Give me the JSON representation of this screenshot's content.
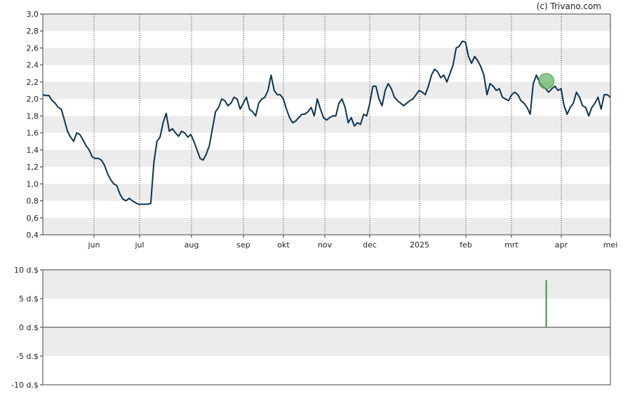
{
  "copyright": "(c) Trivano.com",
  "chart_data": [
    {
      "type": "line",
      "ylim": [
        0.4,
        3.0
      ],
      "yticks": [
        "0,4",
        "0,6",
        "0,8",
        "1,0",
        "1,2",
        "1,4",
        "1,6",
        "1,8",
        "2,0",
        "2,2",
        "2,4",
        "2,6",
        "2,8",
        "3,0"
      ],
      "xticks": [
        "jun",
        "jul",
        "aug",
        "sep",
        "okt",
        "nov",
        "dec",
        "2025",
        "feb",
        "mrt",
        "apr",
        "mei"
      ],
      "grid": true,
      "line_color": "#0d3350",
      "marker": {
        "x": 0.887,
        "y": 2.21,
        "color": "#6ab56a"
      },
      "series": [
        {
          "values": [
            2.05,
            2.04,
            2.04,
            1.98,
            1.95,
            1.9,
            1.88,
            1.75,
            1.62,
            1.55,
            1.5,
            1.6,
            1.58,
            1.52,
            1.45,
            1.4,
            1.32,
            1.3,
            1.3,
            1.28,
            1.22,
            1.12,
            1.05,
            1.0,
            0.98,
            0.88,
            0.82,
            0.8,
            0.83,
            0.8,
            0.78,
            0.76,
            0.76,
            0.76,
            0.76,
            0.77,
            1.25,
            1.5,
            1.55,
            1.72,
            1.83,
            1.62,
            1.65,
            1.6,
            1.56,
            1.62,
            1.6,
            1.55,
            1.58,
            1.5,
            1.4,
            1.3,
            1.28,
            1.35,
            1.45,
            1.65,
            1.85,
            1.9,
            2.0,
            1.98,
            1.92,
            1.95,
            2.02,
            2.0,
            1.88,
            1.95,
            2.02,
            1.88,
            1.85,
            1.8,
            1.95,
            2.0,
            2.02,
            2.1,
            2.28,
            2.1,
            2.05,
            2.05,
            2.0,
            1.88,
            1.78,
            1.72,
            1.74,
            1.78,
            1.82,
            1.82,
            1.85,
            1.9,
            1.8,
            2.0,
            1.88,
            1.78,
            1.75,
            1.78,
            1.8,
            1.8,
            1.95,
            2.0,
            1.9,
            1.72,
            1.78,
            1.68,
            1.72,
            1.7,
            1.82,
            1.8,
            1.95,
            2.15,
            2.15,
            2.0,
            1.92,
            2.1,
            2.18,
            2.12,
            2.02,
            1.98,
            1.95,
            1.92,
            1.95,
            1.98,
            2.0,
            2.05,
            2.1,
            2.08,
            2.05,
            2.15,
            2.28,
            2.35,
            2.32,
            2.25,
            2.28,
            2.2,
            2.3,
            2.4,
            2.6,
            2.62,
            2.68,
            2.67,
            2.5,
            2.42,
            2.5,
            2.45,
            2.38,
            2.28,
            2.05,
            2.18,
            2.15,
            2.1,
            2.12,
            2.02,
            2.0,
            1.98,
            2.05,
            2.08,
            2.05,
            1.98,
            1.95,
            1.9,
            1.82,
            2.18,
            2.28,
            2.2,
            2.15,
            2.12,
            2.08,
            2.12,
            2.15,
            2.1,
            2.12,
            1.92,
            1.82,
            1.9,
            1.95,
            2.08,
            2.02,
            1.92,
            1.9,
            1.8,
            1.9,
            1.95,
            2.02,
            1.88,
            2.05,
            2.05,
            2.02
          ]
        }
      ]
    },
    {
      "type": "bar",
      "ylim": [
        -10,
        10
      ],
      "yticks": [
        "-10 d.$",
        "-5 d.$",
        "0 d.$",
        "5 d.$",
        "10 d.$"
      ],
      "grid": true,
      "bars": [
        {
          "x": 0.887,
          "value": 8.2,
          "color": "#3a9a3a"
        }
      ]
    }
  ]
}
